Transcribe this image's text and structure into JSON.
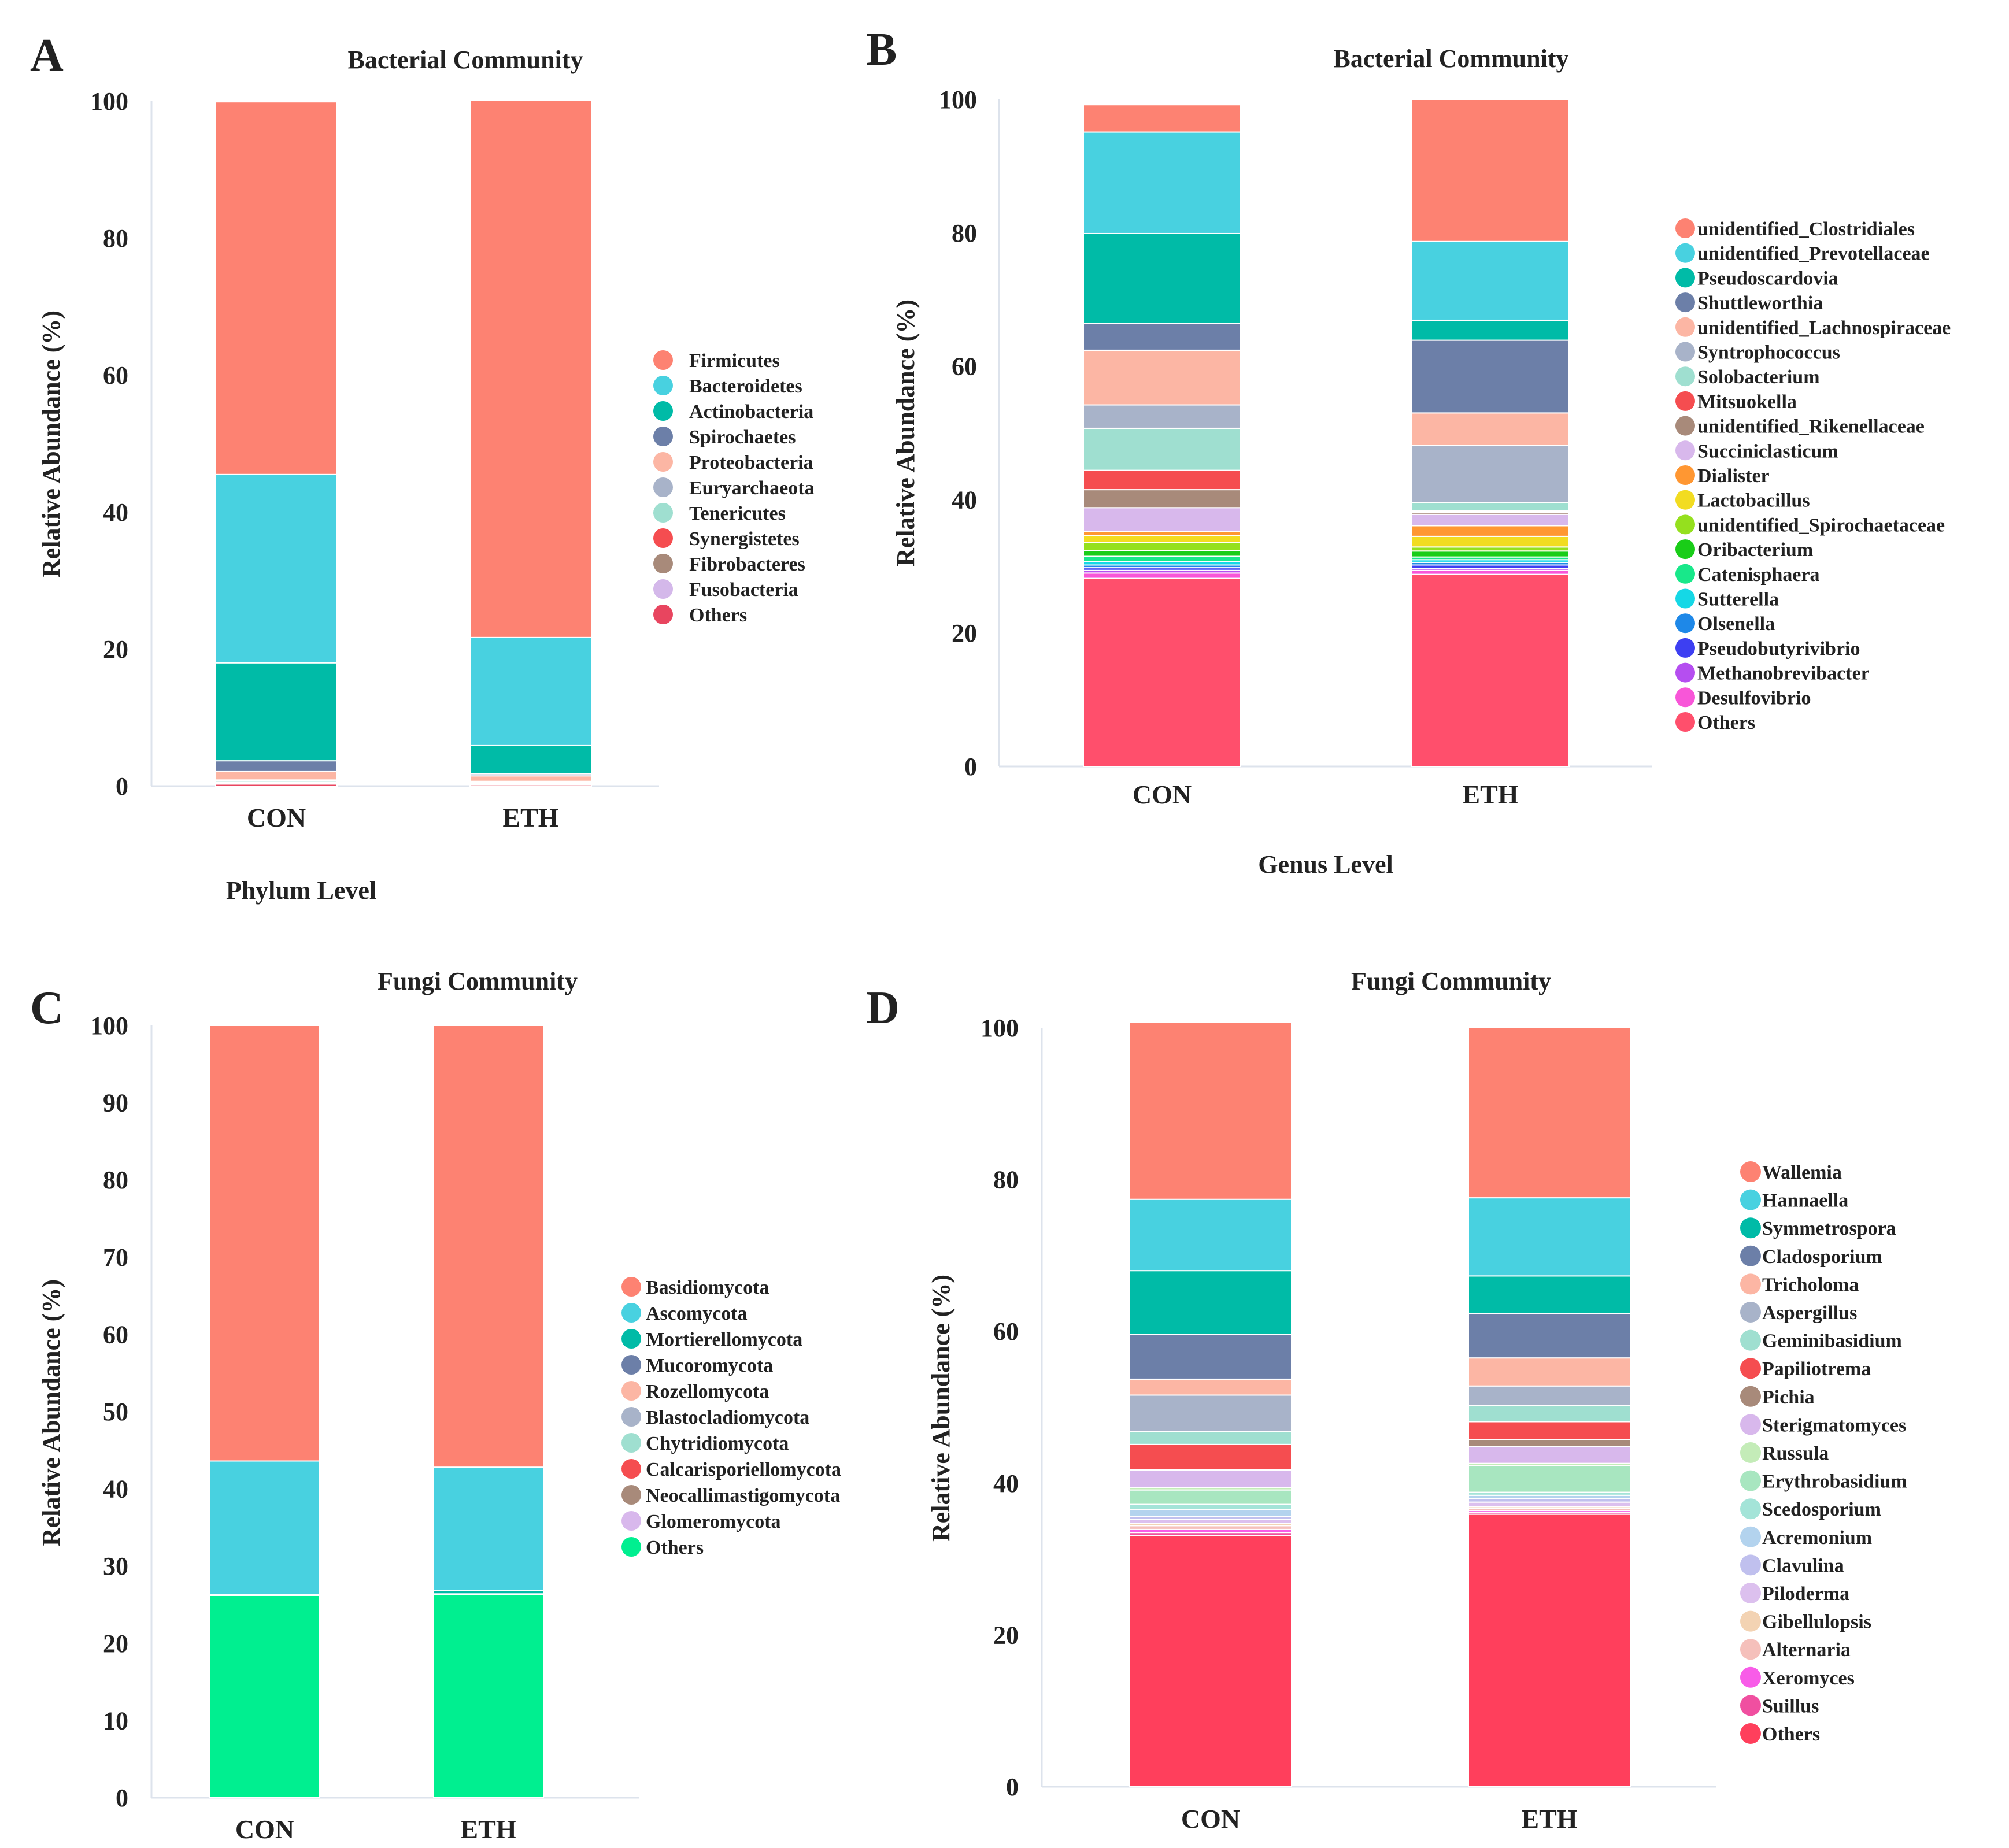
{
  "chart_data": [
    {
      "id": "A",
      "type": "bar",
      "stacked": true,
      "panel_letter": "A",
      "title": "Bacterial Community",
      "xlabel": "Phylum Level",
      "ylabel": "Relative Abundance (%)",
      "ylim": [
        0,
        100
      ],
      "yticks": [
        0,
        20,
        40,
        60,
        80,
        100
      ],
      "categories": [
        "CON",
        "ETH"
      ],
      "legend_position": "right",
      "series": [
        {
          "name": "Others",
          "color": "#e8455f",
          "values": [
            0.3,
            0.2
          ]
        },
        {
          "name": "Fusobacteria",
          "color": "#d4b8ea",
          "values": [
            0.1,
            0.1
          ]
        },
        {
          "name": "Fibrobacteres",
          "color": "#a88a7a",
          "values": [
            0.1,
            0.1
          ]
        },
        {
          "name": "Synergistetes",
          "color": "#f54d50",
          "values": [
            0.1,
            0.1
          ]
        },
        {
          "name": "Tenericutes",
          "color": "#9fdfd0",
          "values": [
            0.2,
            0.1
          ]
        },
        {
          "name": "Euryarchaeota",
          "color": "#a8b3c9",
          "values": [
            0.1,
            0.1
          ]
        },
        {
          "name": "Proteobacteria",
          "color": "#fcb6a4",
          "values": [
            1.3,
            0.8
          ]
        },
        {
          "name": "Spirochaetes",
          "color": "#6c7fa8",
          "values": [
            1.5,
            0.3
          ]
        },
        {
          "name": "Actinobacteria",
          "color": "#00bba7",
          "values": [
            14.3,
            4.2
          ]
        },
        {
          "name": "Bacteroidetes",
          "color": "#48d1e0",
          "values": [
            27.5,
            15.7
          ]
        },
        {
          "name": "Firmicutes",
          "color": "#fd8272",
          "values": [
            54.4,
            78.4
          ]
        }
      ]
    },
    {
      "id": "B",
      "type": "bar",
      "stacked": true,
      "panel_letter": "B",
      "title": "Bacterial Community",
      "xlabel": "Genus Level",
      "ylabel": "Relative Abundance (%)",
      "ylim": [
        0,
        100
      ],
      "yticks": [
        0,
        20,
        40,
        60,
        80,
        100
      ],
      "categories": [
        "CON",
        "ETH"
      ],
      "legend_position": "right",
      "series": [
        {
          "name": "Others",
          "color": "#ff4f6c",
          "values": [
            28.2,
            28.8
          ]
        },
        {
          "name": "Desulfovibrio",
          "color": "#f856d8",
          "values": [
            0.8,
            0.6
          ]
        },
        {
          "name": "Methanobrevibacter",
          "color": "#b54ef0",
          "values": [
            0.4,
            0.3
          ]
        },
        {
          "name": "Pseudobutyrivibrio",
          "color": "#3d3ff2",
          "values": [
            0.4,
            0.5
          ]
        },
        {
          "name": "Olsenella",
          "color": "#1e88e8",
          "values": [
            0.4,
            0.4
          ]
        },
        {
          "name": "Sutterella",
          "color": "#15d8e6",
          "values": [
            0.5,
            0.4
          ]
        },
        {
          "name": "Catenisphaera",
          "color": "#18e88a",
          "values": [
            0.8,
            0.4
          ]
        },
        {
          "name": "Oribacterium",
          "color": "#19cd18",
          "values": [
            0.9,
            0.9
          ]
        },
        {
          "name": "unidentified_Spirochaetaceae",
          "color": "#95e01e",
          "values": [
            1.2,
            0.6
          ]
        },
        {
          "name": "Lactobacillus",
          "color": "#f2dc21",
          "values": [
            1.0,
            1.6
          ]
        },
        {
          "name": "Dialister",
          "color": "#ff9732",
          "values": [
            0.6,
            1.6
          ]
        },
        {
          "name": "Succiniclasticum",
          "color": "#d8b8ec",
          "values": [
            3.6,
            1.7
          ]
        },
        {
          "name": "unidentified_Rikenellaceae",
          "color": "#a88a7a",
          "values": [
            2.7,
            0.3
          ]
        },
        {
          "name": "Mitsuokella",
          "color": "#f54d50",
          "values": [
            2.9,
            0.2
          ]
        },
        {
          "name": "Solobacterium",
          "color": "#9fdfd0",
          "values": [
            6.3,
            1.3
          ]
        },
        {
          "name": "Syntrophococcus",
          "color": "#a8b3c9",
          "values": [
            3.5,
            8.5
          ]
        },
        {
          "name": "unidentified_Lachnospiraceae",
          "color": "#fcb6a4",
          "values": [
            8.2,
            4.9
          ]
        },
        {
          "name": "Shuttleworthia",
          "color": "#6c7fa8",
          "values": [
            4.0,
            10.9
          ]
        },
        {
          "name": "Pseudoscardovia",
          "color": "#00bba7",
          "values": [
            13.5,
            3.0
          ]
        },
        {
          "name": "unidentified_Prevotellaceae",
          "color": "#48d1e0",
          "values": [
            15.2,
            11.8
          ]
        },
        {
          "name": "unidentified_Clostridiales",
          "color": "#fd8272",
          "values": [
            4.1,
            21.3
          ]
        }
      ]
    },
    {
      "id": "C",
      "type": "bar",
      "stacked": true,
      "panel_letter": "C",
      "title": "Fungi Community",
      "xlabel": "",
      "ylabel": "Relative Abundance (%)",
      "ylim": [
        0,
        100
      ],
      "yticks": [
        0,
        10,
        20,
        30,
        40,
        50,
        60,
        70,
        80,
        90,
        100
      ],
      "categories": [
        "CON",
        "ETH"
      ],
      "legend_position": "right",
      "series": [
        {
          "name": "Others",
          "color": "#00ef90",
          "values": [
            26.2,
            26.3
          ]
        },
        {
          "name": "Glomeromycota",
          "color": "#d8b8ec",
          "values": [
            0.0,
            0.0
          ]
        },
        {
          "name": "Neocallimastigomycota",
          "color": "#a88a7a",
          "values": [
            0.0,
            0.0
          ]
        },
        {
          "name": "Calcarisporiellomycota",
          "color": "#f54d50",
          "values": [
            0.0,
            0.0
          ]
        },
        {
          "name": "Chytridiomycota",
          "color": "#9fdfd0",
          "values": [
            0.0,
            0.1
          ]
        },
        {
          "name": "Blastocladiomycota",
          "color": "#a8b3c9",
          "values": [
            0.0,
            0.0
          ]
        },
        {
          "name": "Rozellomycota",
          "color": "#fcb6a4",
          "values": [
            0.0,
            0.0
          ]
        },
        {
          "name": "Mucoromycota",
          "color": "#6c7fa8",
          "values": [
            0.0,
            0.0
          ]
        },
        {
          "name": "Mortierellomycota",
          "color": "#00bba7",
          "values": [
            0.1,
            0.4
          ]
        },
        {
          "name": "Ascomycota",
          "color": "#48d1e0",
          "values": [
            17.3,
            16.0
          ]
        },
        {
          "name": "Basidiomycota",
          "color": "#fd8272",
          "values": [
            56.4,
            57.2
          ]
        }
      ]
    },
    {
      "id": "D",
      "type": "bar",
      "stacked": true,
      "panel_letter": "D",
      "title": "Fungi Community",
      "xlabel": "",
      "ylabel": "Relative Abundance (%)",
      "ylim": [
        0,
        100
      ],
      "yticks": [
        0,
        20,
        40,
        60,
        80,
        100
      ],
      "categories": [
        "CON",
        "ETH"
      ],
      "legend_position": "right",
      "series": [
        {
          "name": "Others",
          "color": "#ff3f5c",
          "values": [
            33.1,
            35.9
          ]
        },
        {
          "name": "Suillus",
          "color": "#f04fa0",
          "values": [
            0.4,
            0.2
          ]
        },
        {
          "name": "Xeromyces",
          "color": "#f85ce8",
          "values": [
            0.4,
            0.3
          ]
        },
        {
          "name": "Alternaria",
          "color": "#f5c0bb",
          "values": [
            0.5,
            0.3
          ]
        },
        {
          "name": "Gibellulopsis",
          "color": "#f3d3b3",
          "values": [
            0.3,
            0.2
          ]
        },
        {
          "name": "Piloderma",
          "color": "#dcc0ee",
          "values": [
            0.5,
            0.6
          ]
        },
        {
          "name": "Clavulina",
          "color": "#c0c0ee",
          "values": [
            0.4,
            0.5
          ]
        },
        {
          "name": "Acremonium",
          "color": "#b3d3ee",
          "values": [
            0.9,
            0.4
          ]
        },
        {
          "name": "Scedosporium",
          "color": "#a4e4d8",
          "values": [
            0.7,
            0.4
          ]
        },
        {
          "name": "Erythrobasidium",
          "color": "#a8e6c0",
          "values": [
            1.9,
            3.5
          ]
        },
        {
          "name": "Russula",
          "color": "#c4ecb8",
          "values": [
            0.3,
            0.3
          ]
        },
        {
          "name": "Sterigmatomyces",
          "color": "#d8b8ec",
          "values": [
            2.3,
            2.2
          ]
        },
        {
          "name": "Pichia",
          "color": "#a88a7a",
          "values": [
            0.1,
            0.9
          ]
        },
        {
          "name": "Papiliotrema",
          "color": "#f54d50",
          "values": [
            3.3,
            2.4
          ]
        },
        {
          "name": "Geminibasidium",
          "color": "#9fdfd0",
          "values": [
            1.7,
            2.1
          ]
        },
        {
          "name": "Aspergillus",
          "color": "#a8b3c9",
          "values": [
            4.8,
            2.6
          ]
        },
        {
          "name": "Tricholoma",
          "color": "#fcb6a4",
          "values": [
            2.1,
            3.7
          ]
        },
        {
          "name": "Cladosporium",
          "color": "#6c7fa8",
          "values": [
            5.9,
            5.8
          ]
        },
        {
          "name": "Symmetrospora",
          "color": "#00bba7",
          "values": [
            8.4,
            5.0
          ]
        },
        {
          "name": "Hannaella",
          "color": "#48d1e0",
          "values": [
            9.4,
            10.3
          ]
        },
        {
          "name": "Wallemia",
          "color": "#fd8272",
          "values": [
            23.3,
            22.4
          ]
        }
      ]
    }
  ]
}
